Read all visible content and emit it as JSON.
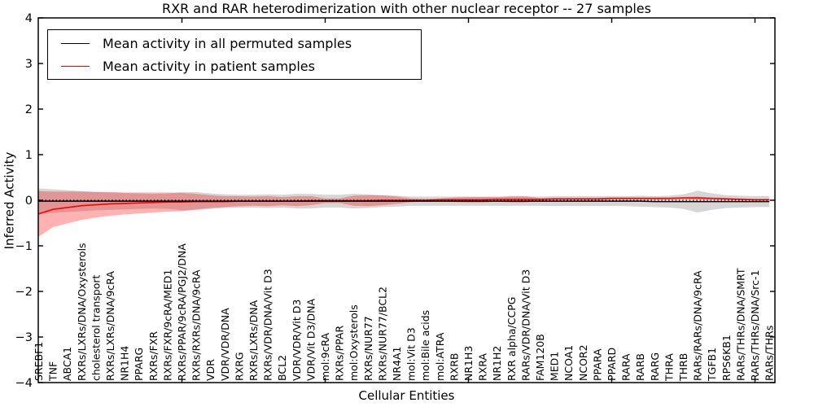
{
  "chart_data": {
    "type": "line",
    "title": "RXR and RAR heterodimerization with other nuclear receptor -- 27 samples",
    "xlabel": "Cellular Entities",
    "ylabel": "Inferred Activity",
    "ylim": [
      -4,
      4
    ],
    "yticks": [
      4,
      3,
      2,
      1,
      0,
      -1,
      -2,
      -3,
      -4
    ],
    "x_major_tick_positions": [
      10,
      20,
      30,
      40,
      50
    ],
    "grid": false,
    "legend_position": "upper left",
    "zero_line": {
      "value": 0,
      "style": "dotted",
      "color": "#000000"
    },
    "categories": [
      "SREBF1",
      "TNF",
      "ABCA1",
      "RXRs/LXRs/DNA/Oxysterols",
      "cholesterol transport",
      "RXRs/LXRs/DNA/9cRA",
      "NR1H4",
      "PPARG",
      "RXRs/FXR",
      "RXRs/FXR/9cRA/MED1",
      "RXRs/PPAR/9cRA/PGJ2/DNA",
      "RXRs/RXRs/DNA/9cRA",
      "VDR",
      "VDR/VDR/DNA",
      "RXRG",
      "RXRs/LXRs/DNA",
      "RXRs/VDR/DNA/Vit D3",
      "BCL2",
      "VDR/VDR/Vit D3",
      "VDR/Vit D3/DNA",
      "mol:9cRA",
      "RXRs/PPAR",
      "mol:Oxysterols",
      "RXRs/NUR77",
      "RXRs/NUR77/BCL2",
      "NR4A1",
      "mol:Vit D3",
      "mol:Bile acids",
      "mol:ATRA",
      "RXRB",
      "NR1H3",
      "RXRA",
      "NR1H2",
      "RXR alpha/CCPG",
      "RARs/VDR/DNA/Vit D3",
      "FAM120B",
      "MED1",
      "NCOA1",
      "NCOR2",
      "PPARA",
      "PPARD",
      "RARA",
      "RARB",
      "RARG",
      "THRA",
      "THRB",
      "RARs/RARs/DNA/9cRA",
      "TGFB1",
      "RPS6KB1",
      "RARs/THRs/DNA/SMRT",
      "RARs/THRs/DNA/Src-1",
      "RARs/THRs"
    ],
    "series": [
      {
        "name": "Mean activity in all permuted samples",
        "color": "#000000",
        "band_fill": "rgba(0,0,0,0.16)",
        "values": [
          -0.02,
          -0.02,
          -0.02,
          -0.02,
          -0.02,
          -0.02,
          -0.02,
          -0.02,
          -0.02,
          -0.02,
          -0.02,
          -0.02,
          -0.02,
          -0.02,
          -0.02,
          -0.02,
          -0.02,
          -0.02,
          -0.02,
          -0.02,
          -0.02,
          -0.02,
          -0.02,
          -0.02,
          -0.02,
          -0.02,
          -0.02,
          -0.02,
          -0.02,
          -0.02,
          -0.02,
          -0.02,
          -0.02,
          -0.02,
          -0.02,
          -0.02,
          -0.02,
          -0.02,
          -0.02,
          -0.02,
          -0.02,
          -0.02,
          -0.02,
          -0.03,
          -0.03,
          -0.03,
          -0.03,
          -0.03,
          -0.03,
          -0.03,
          -0.03,
          -0.03
        ],
        "std": [
          0.28,
          0.26,
          0.24,
          0.22,
          0.2,
          0.19,
          0.18,
          0.17,
          0.16,
          0.17,
          0.2,
          0.2,
          0.17,
          0.15,
          0.14,
          0.14,
          0.15,
          0.14,
          0.16,
          0.16,
          0.14,
          0.14,
          0.16,
          0.15,
          0.13,
          0.12,
          0.1,
          0.1,
          0.1,
          0.1,
          0.1,
          0.1,
          0.1,
          0.1,
          0.1,
          0.1,
          0.11,
          0.11,
          0.11,
          0.11,
          0.11,
          0.11,
          0.12,
          0.12,
          0.13,
          0.16,
          0.24,
          0.18,
          0.14,
          0.13,
          0.12,
          0.12
        ]
      },
      {
        "name": "Mean activity in patient samples",
        "color": "#ff0000",
        "band_fill": "rgba(255,0,0,0.30)",
        "values": [
          -0.3,
          -0.2,
          -0.16,
          -0.12,
          -0.1,
          -0.08,
          -0.07,
          -0.06,
          -0.05,
          -0.04,
          -0.04,
          -0.03,
          -0.03,
          -0.03,
          -0.02,
          -0.02,
          -0.02,
          -0.02,
          -0.02,
          -0.01,
          -0.01,
          -0.01,
          -0.01,
          -0.01,
          0.0,
          0.0,
          0.0,
          0.0,
          0.01,
          0.01,
          0.01,
          0.01,
          0.02,
          0.02,
          0.02,
          0.02,
          0.03,
          0.03,
          0.03,
          0.03,
          0.04,
          0.04,
          0.04,
          0.04,
          0.04,
          0.05,
          0.05,
          0.04,
          0.03,
          0.02,
          0.01,
          0.01
        ],
        "std": [
          0.5,
          0.39,
          0.35,
          0.31,
          0.28,
          0.26,
          0.24,
          0.23,
          0.22,
          0.21,
          0.2,
          0.17,
          0.14,
          0.12,
          0.11,
          0.1,
          0.11,
          0.09,
          0.11,
          0.1,
          0.05,
          0.05,
          0.11,
          0.12,
          0.11,
          0.08,
          0.04,
          0.03,
          0.03,
          0.05,
          0.06,
          0.06,
          0.05,
          0.07,
          0.07,
          0.03,
          0.02,
          0.02,
          0.02,
          0.02,
          0.02,
          0.02,
          0.02,
          0.02,
          0.02,
          0.02,
          0.03,
          0.02,
          0.02,
          0.02,
          0.02,
          0.02
        ]
      }
    ]
  }
}
